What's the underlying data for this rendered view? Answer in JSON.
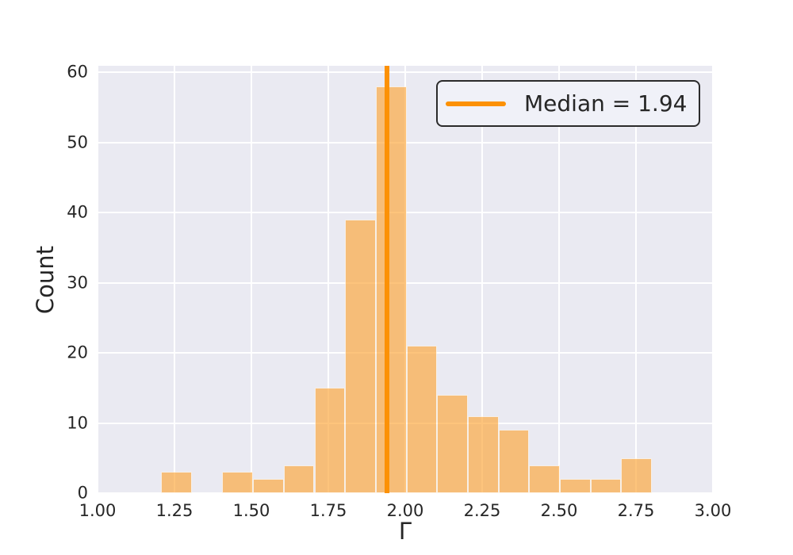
{
  "chart_data": {
    "type": "bar",
    "subtype": "histogram",
    "title": "",
    "xlabel": "Γ",
    "ylabel": "Count",
    "xlim": [
      1.0,
      3.0
    ],
    "ylim": [
      0,
      60.9
    ],
    "grid": true,
    "x_ticks": {
      "values": [
        1.0,
        1.25,
        1.5,
        1.75,
        2.0,
        2.25,
        2.5,
        2.75,
        3.0
      ],
      "labels": [
        "1.00",
        "1.25",
        "1.50",
        "1.75",
        "2.00",
        "2.25",
        "2.50",
        "2.75",
        "3.00"
      ]
    },
    "y_ticks": {
      "values": [
        0,
        10,
        20,
        30,
        40,
        50,
        60
      ],
      "labels": [
        "0",
        "10",
        "20",
        "30",
        "40",
        "50",
        "60"
      ]
    },
    "bin_edges": [
      1.206,
      1.306,
      1.405,
      1.505,
      1.605,
      1.705,
      1.804,
      1.904,
      2.004,
      2.103,
      2.203,
      2.303,
      2.402,
      2.502,
      2.602,
      2.702,
      2.801
    ],
    "counts": [
      3,
      0,
      3,
      2,
      4,
      15,
      39,
      58,
      21,
      14,
      11,
      9,
      4,
      2,
      2,
      5
    ],
    "median_line": {
      "value": 1.94
    },
    "legend": {
      "label": "Median = 1.94",
      "position": "upper-right"
    },
    "colors": {
      "bar_fill": "#fda637",
      "bar_alpha": "0.65",
      "bar_edge": "rgba(255,255,255,0.85)",
      "median_line": "#fc9105",
      "plot_bg": "#eaeaf2",
      "grid": "#ffffff",
      "text": "#262626",
      "legend_border": "#2b2b2b",
      "legend_bg": "#f0f1f8"
    }
  }
}
